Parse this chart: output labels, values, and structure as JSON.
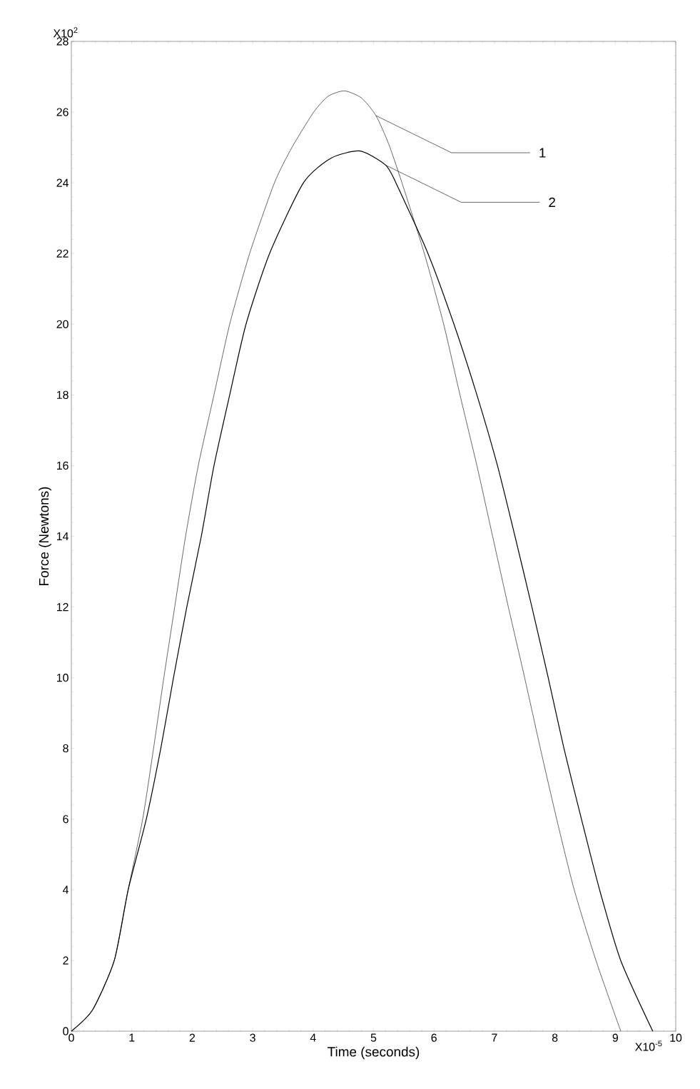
{
  "chart_data": {
    "type": "line",
    "xlabel": "Time (seconds)",
    "ylabel": "Force (Newtons)",
    "xlim": [
      0,
      10
    ],
    "ylim": [
      0,
      28
    ],
    "xticks": [
      0,
      1,
      2,
      3,
      4,
      5,
      6,
      7,
      8,
      9,
      10
    ],
    "yticks": [
      0,
      2,
      4,
      6,
      8,
      10,
      12,
      14,
      16,
      18,
      20,
      22,
      24,
      26,
      28
    ],
    "grid": false,
    "series": [
      {
        "color": "#000000",
        "x": [
          0,
          0.35,
          0.71,
          0.94,
          1.18,
          1.36,
          1.53,
          1.71,
          1.89,
          2.1,
          2.36,
          2.62,
          2.95,
          3.36,
          3.65,
          4.01,
          4.25,
          4.52,
          4.8,
          5.04,
          5.25,
          5.47,
          5.84,
          6.16,
          6.43,
          6.71,
          6.97,
          7.23,
          7.5,
          7.76,
          8.03,
          8.32,
          8.68,
          9.09
        ],
        "values": [
          0,
          0.6,
          2,
          4,
          6,
          8,
          10,
          12,
          14,
          16,
          18,
          20,
          22,
          24,
          25,
          26,
          26.45,
          26.6,
          26.4,
          25.9,
          25.1,
          24,
          22,
          20,
          18,
          16,
          14,
          12,
          10,
          8,
          6,
          4,
          2,
          0
        ]
      },
      {
        "color": "#000000",
        "x": [
          0,
          0.35,
          0.71,
          0.94,
          1.24,
          1.48,
          1.69,
          1.91,
          2.15,
          2.36,
          2.62,
          2.89,
          3.28,
          3.84,
          4.3,
          4.78,
          5.2,
          5.37,
          5.9,
          6.33,
          6.71,
          7.05,
          7.34,
          7.62,
          7.89,
          8.15,
          8.44,
          8.74,
          9.09,
          9.62
        ],
        "values": [
          0,
          0.6,
          2,
          4,
          6,
          8,
          10,
          12,
          14,
          16,
          18,
          20,
          22,
          24,
          24.7,
          24.9,
          24.5,
          24,
          22,
          20,
          18,
          16,
          14,
          12,
          10,
          8,
          6,
          4,
          2,
          0
        ]
      }
    ],
    "annotations": [
      "X10$^{2}$",
      "X10$^{-5}$",
      {
        "text": "1",
        "x": 5.04,
        "y": 25.9
      },
      {
        "text": "2",
        "x": 5.2,
        "y": 24.5
      }
    ]
  }
}
